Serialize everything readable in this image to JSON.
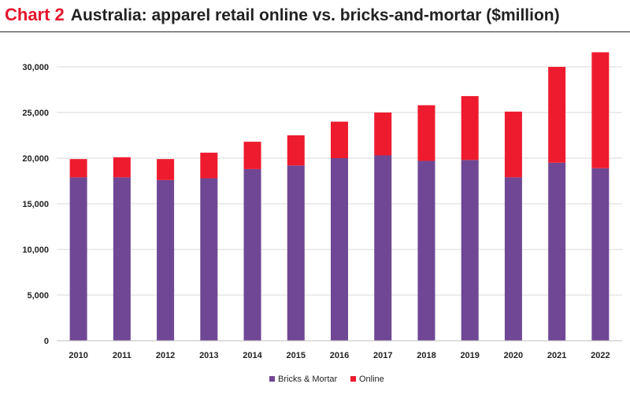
{
  "header": {
    "chart_number": "Chart 2",
    "title": "Australia: apparel retail online vs. bricks-and-mortar ($million)"
  },
  "colors": {
    "bricks": "#6f4794",
    "online": "#ee1b2e",
    "gridline": "#d9d9d9",
    "title_accent": "#e4142b"
  },
  "chart_data": {
    "type": "bar",
    "stacked": true,
    "categories": [
      "2010",
      "2011",
      "2012",
      "2013",
      "2014",
      "2015",
      "2016",
      "2017",
      "2018",
      "2019",
      "2020",
      "2021",
      "2022"
    ],
    "series": [
      {
        "name": "Bricks & Mortar",
        "values": [
          17900,
          17900,
          17600,
          17800,
          18800,
          19200,
          20000,
          20300,
          19700,
          19800,
          17900,
          19500,
          18900
        ]
      },
      {
        "name": "Online",
        "values": [
          2000,
          2200,
          2300,
          2800,
          3000,
          3300,
          4000,
          4700,
          6100,
          7000,
          7200,
          10500,
          12700
        ]
      }
    ],
    "yticks": [
      "0",
      "5,000",
      "10,000",
      "15,000",
      "20,000",
      "25,000",
      "30,000"
    ],
    "ylim": [
      0,
      32500
    ],
    "grid": true,
    "legend_position": "bottom"
  }
}
